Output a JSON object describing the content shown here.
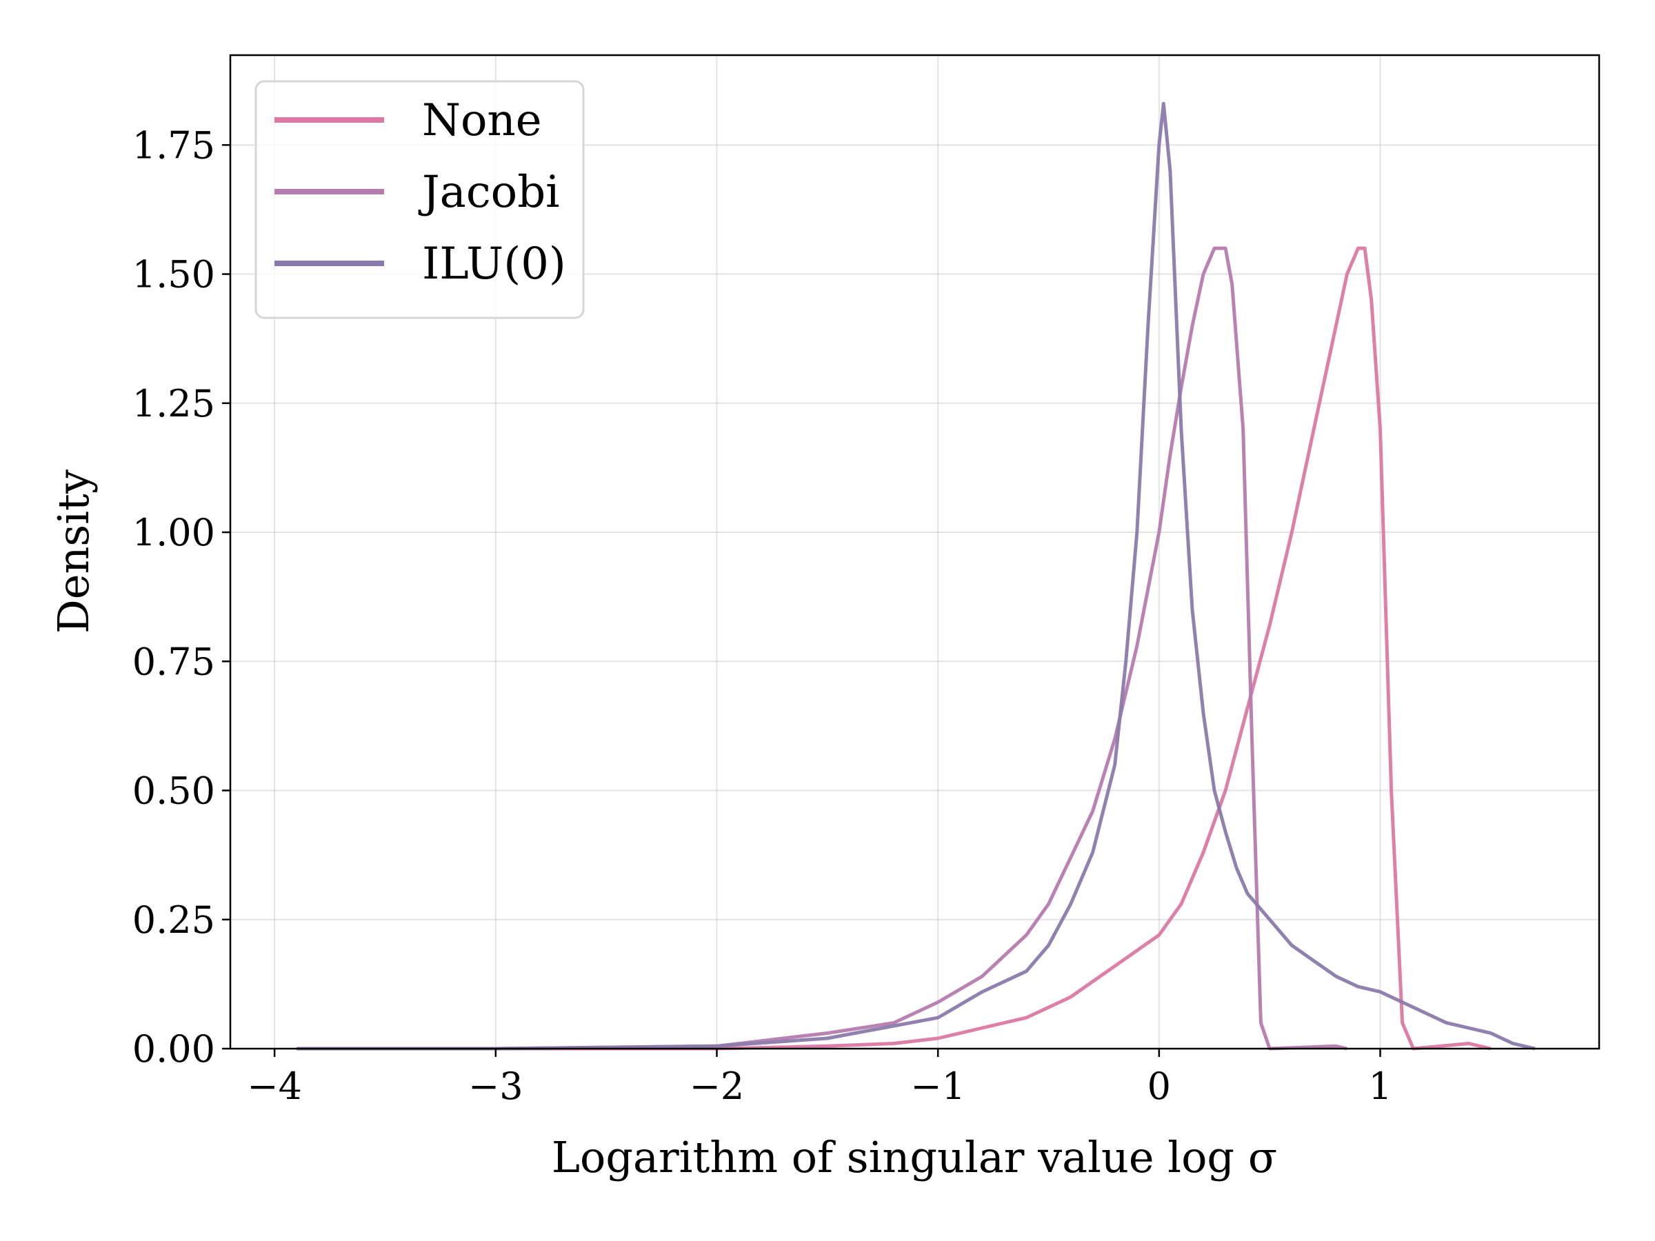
{
  "chart_data": {
    "type": "line",
    "title": "",
    "xlabel": "Logarithm of singular value log σ",
    "ylabel": "Density",
    "xlim": [
      -4.2,
      1.99
    ],
    "ylim": [
      0,
      1.924
    ],
    "xticks": [
      -4,
      -3,
      -2,
      -1,
      0,
      1
    ],
    "xtick_labels": [
      "−4",
      "−3",
      "−2",
      "−1",
      "0",
      "1"
    ],
    "yticks": [
      0,
      0.25,
      0.5,
      0.75,
      1.0,
      1.25,
      1.5,
      1.75
    ],
    "ytick_labels": [
      "0.00",
      "0.25",
      "0.50",
      "0.75",
      "1.00",
      "1.25",
      "1.50",
      "1.75"
    ],
    "grid": true,
    "legend_placement": "top-left",
    "series": [
      {
        "name": "None",
        "color": "#dc78a3",
        "x": [
          -3.9,
          -3.0,
          -2.0,
          -1.5,
          -1.2,
          -1.0,
          -0.8,
          -0.6,
          -0.4,
          -0.2,
          0.0,
          0.1,
          0.2,
          0.3,
          0.4,
          0.5,
          0.6,
          0.7,
          0.8,
          0.85,
          0.9,
          0.93,
          0.96,
          1.0,
          1.05,
          1.1,
          1.15,
          1.4,
          1.5
        ],
        "y": [
          0,
          0,
          0,
          0.005,
          0.01,
          0.02,
          0.04,
          0.06,
          0.1,
          0.16,
          0.22,
          0.28,
          0.38,
          0.5,
          0.66,
          0.82,
          1.0,
          1.2,
          1.4,
          1.5,
          1.55,
          1.55,
          1.45,
          1.2,
          0.5,
          0.05,
          0,
          0.01,
          0
        ]
      },
      {
        "name": "Jacobi",
        "color": "#b57bae",
        "x": [
          -3.9,
          -3.0,
          -2.0,
          -1.5,
          -1.2,
          -1.0,
          -0.8,
          -0.6,
          -0.5,
          -0.4,
          -0.3,
          -0.2,
          -0.1,
          0.0,
          0.05,
          0.1,
          0.15,
          0.2,
          0.25,
          0.3,
          0.33,
          0.38,
          0.42,
          0.46,
          0.5,
          0.8,
          0.85
        ],
        "y": [
          0,
          0,
          0.005,
          0.03,
          0.05,
          0.09,
          0.14,
          0.22,
          0.28,
          0.37,
          0.46,
          0.6,
          0.78,
          1.0,
          1.15,
          1.28,
          1.4,
          1.5,
          1.55,
          1.55,
          1.48,
          1.2,
          0.6,
          0.05,
          0,
          0.005,
          0
        ]
      },
      {
        "name": "ILU(0)",
        "color": "#8a7aab",
        "x": [
          -3.9,
          -3.0,
          -2.0,
          -1.5,
          -1.0,
          -0.8,
          -0.6,
          -0.5,
          -0.4,
          -0.3,
          -0.2,
          -0.15,
          -0.1,
          -0.05,
          0.0,
          0.02,
          0.05,
          0.1,
          0.15,
          0.2,
          0.25,
          0.3,
          0.35,
          0.4,
          0.5,
          0.6,
          0.7,
          0.8,
          0.9,
          1.0,
          1.1,
          1.2,
          1.3,
          1.4,
          1.5,
          1.6,
          1.7
        ],
        "y": [
          0,
          0,
          0.005,
          0.02,
          0.06,
          0.11,
          0.15,
          0.2,
          0.28,
          0.38,
          0.55,
          0.75,
          1.0,
          1.4,
          1.75,
          1.83,
          1.7,
          1.2,
          0.85,
          0.65,
          0.5,
          0.42,
          0.35,
          0.3,
          0.25,
          0.2,
          0.17,
          0.14,
          0.12,
          0.11,
          0.09,
          0.07,
          0.05,
          0.04,
          0.03,
          0.01,
          0
        ]
      }
    ]
  }
}
